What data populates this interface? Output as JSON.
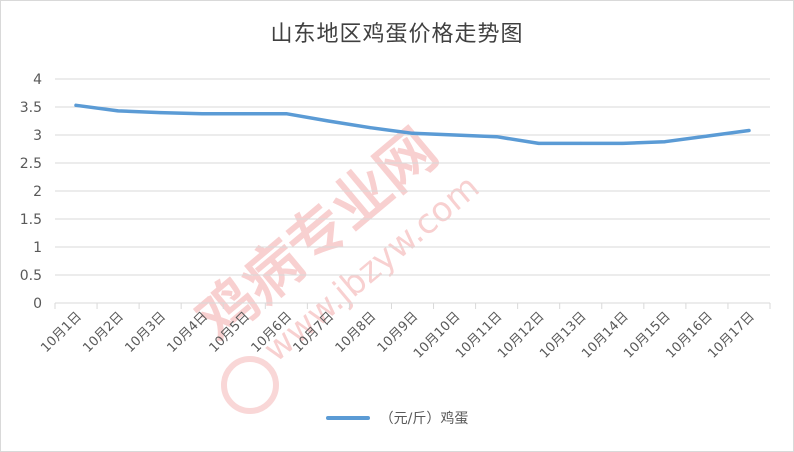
{
  "chart_data": {
    "type": "line",
    "title": "山东地区鸡蛋价格走势图",
    "xlabel": "",
    "ylabel": "",
    "categories": [
      "10月1日",
      "10月2日",
      "10月3日",
      "10月4日",
      "10月5日",
      "10月6日",
      "10月7日",
      "10月8日",
      "10月9日",
      "10月10日",
      "10月11日",
      "10月12日",
      "10月13日",
      "10月14日",
      "10月15日",
      "10月16日",
      "10月17日"
    ],
    "series": [
      {
        "name": "（元/斤）鸡蛋",
        "color": "#5b9bd5",
        "values": [
          3.53,
          3.43,
          3.4,
          3.38,
          3.38,
          3.38,
          3.25,
          3.13,
          3.03,
          3.0,
          2.97,
          2.85,
          2.85,
          2.85,
          2.88,
          2.98,
          3.08
        ]
      }
    ],
    "ylim": [
      0,
      4
    ],
    "yticks": [
      "0",
      "0.5",
      "1",
      "1.5",
      "2",
      "2.5",
      "3",
      "3.5",
      "4"
    ],
    "grid": true,
    "legend_position": "bottom",
    "watermark": {
      "line1": "鸡病专业网",
      "line2": "www.jbzyw.com"
    }
  }
}
